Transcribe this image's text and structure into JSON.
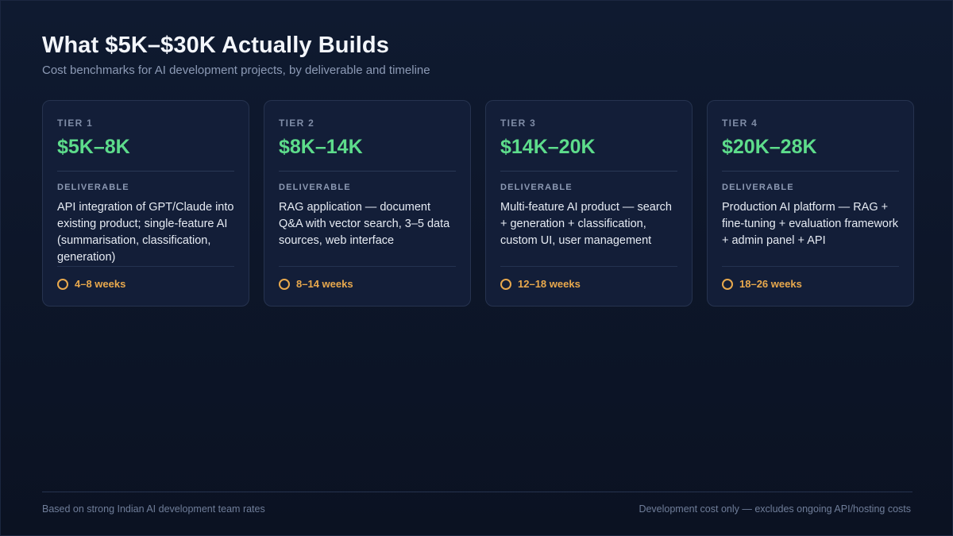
{
  "header": {
    "title": "What $5K–$30K Actually Builds",
    "subtitle": "Cost benchmarks for AI development projects, by deliverable and timeline"
  },
  "deliverable_label": "DELIVERABLE",
  "tiers": [
    {
      "tier": "TIER 1",
      "price": "$5K–8K",
      "deliverable": "API integration of GPT/Claude into existing product; single-feature AI (summarisation, classification, generation)",
      "timeline": "4–8 weeks"
    },
    {
      "tier": "TIER 2",
      "price": "$8K–14K",
      "deliverable": "RAG application — document Q&A with vector search, 3–5 data sources, web interface",
      "timeline": "8–14 weeks"
    },
    {
      "tier": "TIER 3",
      "price": "$14K–20K",
      "deliverable": "Multi-feature AI product — search + generation + classification, custom UI, user management",
      "timeline": "12–18 weeks"
    },
    {
      "tier": "TIER 4",
      "price": "$20K–28K",
      "deliverable": "Production AI platform — RAG + fine-tuning + evaluation framework + admin panel + API",
      "timeline": "18–26 weeks"
    }
  ],
  "footer": {
    "left": "Based on strong Indian AI development team rates",
    "right": "Development cost only — excludes ongoing API/hosting costs"
  },
  "colors": {
    "price": "#5ddc8b",
    "timeline": "#e9a94d",
    "background": "#0b1222",
    "card": "#131e38"
  },
  "icons": {
    "timeline": "clock-icon"
  }
}
